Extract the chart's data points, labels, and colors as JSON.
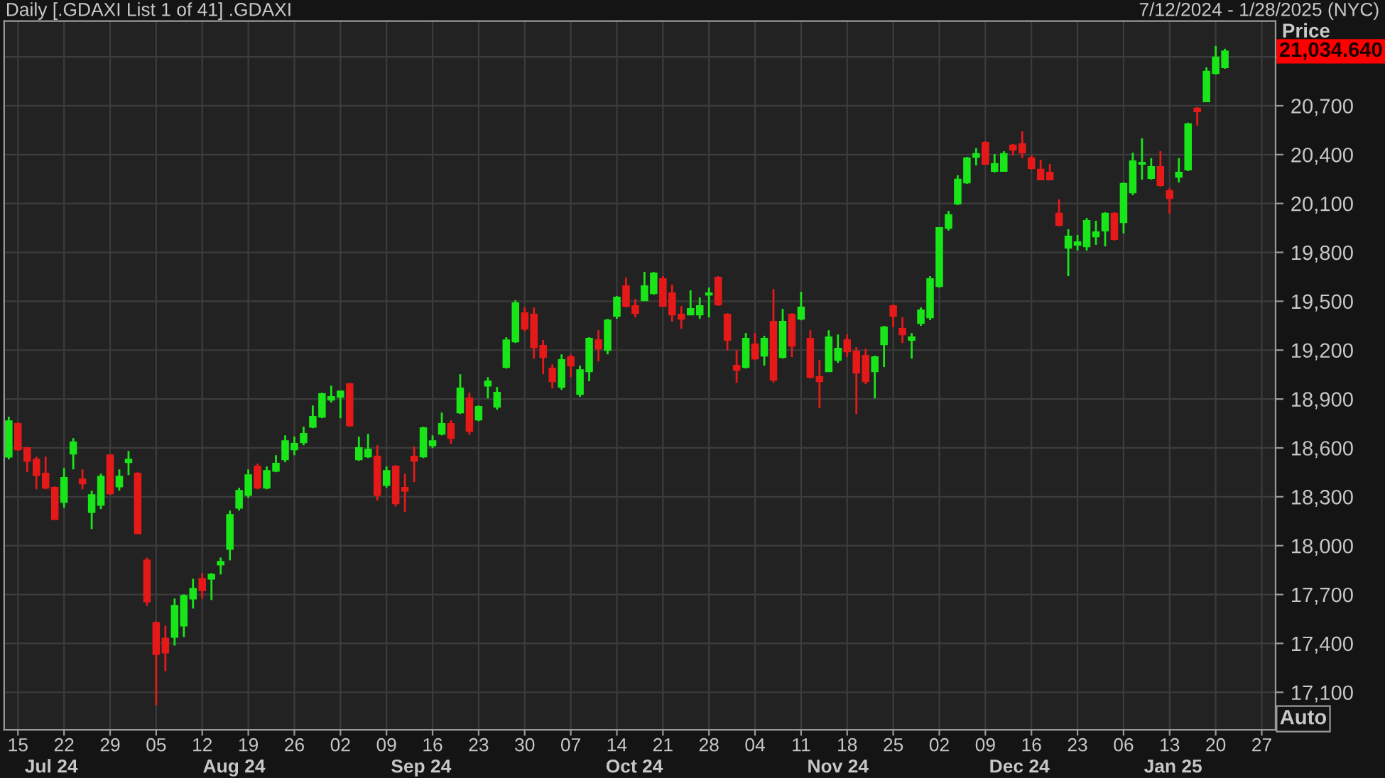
{
  "chart_data": {
    "type": "candlestick",
    "title": "Daily [.GDAXI List 1 of 41] .GDAXI",
    "subtitle": "7/12/2024 - 1/28/2025 (NYC)",
    "ylabel": "Price",
    "categories": [
      null,
      "15",
      null,
      null,
      null,
      null,
      "22",
      null,
      null,
      null,
      null,
      "29",
      null,
      null,
      null,
      null,
      "05",
      null,
      null,
      null,
      null,
      "12",
      null,
      null,
      null,
      null,
      "19",
      null,
      null,
      null,
      null,
      "26",
      null,
      null,
      null,
      null,
      "02",
      null,
      null,
      null,
      null,
      "09",
      null,
      null,
      null,
      null,
      "16",
      null,
      null,
      null,
      null,
      "23",
      null,
      null,
      null,
      null,
      "30",
      null,
      null,
      null,
      null,
      "07",
      null,
      null,
      null,
      null,
      "14",
      null,
      null,
      null,
      null,
      "21",
      null,
      null,
      null,
      null,
      "28",
      null,
      null,
      null,
      null,
      "04",
      null,
      null,
      null,
      null,
      "11",
      null,
      null,
      null,
      null,
      "18",
      null,
      null,
      null,
      null,
      "25",
      null,
      null,
      null,
      null,
      "02",
      null,
      null,
      null,
      null,
      "09",
      null,
      null,
      null,
      null,
      "16",
      null,
      null,
      null,
      null,
      "23",
      null,
      null,
      null,
      null,
      "06",
      null,
      null,
      null,
      null,
      "13",
      null,
      null,
      null,
      null,
      "20",
      null,
      null,
      null,
      null,
      "27",
      null
    ],
    "ohlc": [
      [
        18546,
        18791,
        18529,
        18764
      ],
      [
        18747,
        18756,
        18581,
        18590
      ],
      [
        18599,
        18599,
        18451,
        18520
      ],
      [
        18529,
        18547,
        18346,
        18433
      ],
      [
        18442,
        18547,
        18346,
        18355
      ],
      [
        18355,
        18363,
        18163,
        18163
      ],
      [
        18268,
        18477,
        18233,
        18416
      ],
      [
        18564,
        18660,
        18468,
        18634
      ],
      [
        18407,
        18468,
        18346,
        18381
      ],
      [
        18206,
        18337,
        18102,
        18311
      ],
      [
        18250,
        18442,
        18224,
        18424
      ],
      [
        18555,
        18555,
        18311,
        18320
      ],
      [
        18363,
        18468,
        18337,
        18424
      ],
      [
        18512,
        18581,
        18433,
        18529
      ],
      [
        18442,
        18451,
        18075,
        18075
      ],
      [
        17910,
        17927,
        17631,
        17657
      ],
      [
        17526,
        17535,
        17020,
        17334
      ],
      [
        17430,
        17509,
        17230,
        17343
      ],
      [
        17439,
        17675,
        17387,
        17631
      ],
      [
        17509,
        17701,
        17439,
        17692
      ],
      [
        17675,
        17797,
        17614,
        17736
      ],
      [
        17797,
        17832,
        17675,
        17727
      ],
      [
        17797,
        17832,
        17666,
        17823
      ],
      [
        17884,
        17927,
        17823,
        17901
      ],
      [
        17980,
        18215,
        17910,
        18189
      ],
      [
        18232,
        18355,
        18215,
        18337
      ],
      [
        18311,
        18468,
        18294,
        18433
      ],
      [
        18486,
        18503,
        18346,
        18355
      ],
      [
        18355,
        18486,
        18346,
        18459
      ],
      [
        18459,
        18555,
        18451,
        18503
      ],
      [
        18529,
        18677,
        18512,
        18642
      ],
      [
        18590,
        18669,
        18555,
        18625
      ],
      [
        18634,
        18730,
        18616,
        18686
      ],
      [
        18729,
        18860,
        18721,
        18791
      ],
      [
        18791,
        18939,
        18782,
        18930
      ],
      [
        18895,
        18982,
        18878,
        18913
      ],
      [
        18913,
        18947,
        18782,
        18947
      ],
      [
        18991,
        18999,
        18729,
        18738
      ],
      [
        18529,
        18669,
        18520,
        18599
      ],
      [
        18547,
        18686,
        18538,
        18590
      ],
      [
        18547,
        18616,
        18276,
        18311
      ],
      [
        18372,
        18486,
        18355,
        18459
      ],
      [
        18486,
        18494,
        18241,
        18259
      ],
      [
        18355,
        18442,
        18206,
        18337
      ],
      [
        18547,
        18608,
        18390,
        18520
      ],
      [
        18547,
        18730,
        18538,
        18721
      ],
      [
        18616,
        18677,
        18599,
        18642
      ],
      [
        18686,
        18817,
        18677,
        18747
      ],
      [
        18747,
        18770,
        18625,
        18660
      ],
      [
        18817,
        19052,
        18808,
        18965
      ],
      [
        18904,
        18939,
        18680,
        18704
      ],
      [
        18773,
        18860,
        18764,
        18852
      ],
      [
        18982,
        19034,
        18904,
        19008
      ],
      [
        18852,
        18974,
        18834,
        18939
      ],
      [
        19096,
        19279,
        19087,
        19261
      ],
      [
        19253,
        19506,
        19244,
        19488
      ],
      [
        19427,
        19462,
        19314,
        19331
      ],
      [
        19418,
        19462,
        19148,
        19218
      ],
      [
        19227,
        19262,
        19052,
        19157
      ],
      [
        19087,
        19113,
        18965,
        19009
      ],
      [
        18974,
        19174,
        18956,
        19140
      ],
      [
        19157,
        19174,
        19035,
        19105
      ],
      [
        18930,
        19105,
        18913,
        19078
      ],
      [
        19070,
        19279,
        19009,
        19270
      ],
      [
        19262,
        19322,
        19131,
        19209
      ],
      [
        19200,
        19392,
        19174,
        19383
      ],
      [
        19410,
        19532,
        19392,
        19523
      ],
      [
        19593,
        19645,
        19462,
        19471
      ],
      [
        19471,
        19514,
        19401,
        19427
      ],
      [
        19505,
        19680,
        19505,
        19593
      ],
      [
        19549,
        19680,
        19540,
        19671
      ],
      [
        19636,
        19654,
        19471,
        19471
      ],
      [
        19549,
        19602,
        19375,
        19418
      ],
      [
        19418,
        19471,
        19331,
        19392
      ],
      [
        19418,
        19567,
        19418,
        19453
      ],
      [
        19418,
        19523,
        19392,
        19471
      ],
      [
        19540,
        19584,
        19401,
        19549
      ],
      [
        19645,
        19654,
        19471,
        19480
      ],
      [
        19418,
        19427,
        19200,
        19262
      ],
      [
        19105,
        19200,
        18999,
        19078
      ],
      [
        19096,
        19305,
        19087,
        19270
      ],
      [
        19235,
        19305,
        19139,
        19148
      ],
      [
        19166,
        19288,
        19105,
        19270
      ],
      [
        19375,
        19575,
        19000,
        19017
      ],
      [
        19157,
        19453,
        19148,
        19375
      ],
      [
        19418,
        19427,
        19157,
        19227
      ],
      [
        19392,
        19558,
        19383,
        19462
      ],
      [
        19270,
        19322,
        19026,
        19035
      ],
      [
        19035,
        19140,
        18843,
        19009
      ],
      [
        19070,
        19322,
        19070,
        19279
      ],
      [
        19139,
        19296,
        19122,
        19209
      ],
      [
        19262,
        19296,
        19157,
        19192
      ],
      [
        19192,
        19218,
        18808,
        19061
      ],
      [
        19166,
        19209,
        18991,
        19009
      ],
      [
        19070,
        19166,
        18904,
        19157
      ],
      [
        19235,
        19349,
        19096,
        19340
      ],
      [
        19471,
        19479,
        19340,
        19410
      ],
      [
        19331,
        19401,
        19244,
        19296
      ],
      [
        19262,
        19305,
        19148,
        19279
      ],
      [
        19366,
        19462,
        19349,
        19445
      ],
      [
        19401,
        19654,
        19384,
        19636
      ],
      [
        19593,
        19950,
        19584,
        19950
      ],
      [
        19950,
        20055,
        19933,
        20029
      ],
      [
        20099,
        20273,
        20090,
        20247
      ],
      [
        20229,
        20386,
        20221,
        20378
      ],
      [
        20386,
        20439,
        20334,
        20404
      ],
      [
        20473,
        20482,
        20343,
        20343
      ],
      [
        20299,
        20404,
        20290,
        20343
      ],
      [
        20299,
        20421,
        20299,
        20404
      ],
      [
        20456,
        20465,
        20395,
        20430
      ],
      [
        20465,
        20543,
        20378,
        20413
      ],
      [
        20378,
        20395,
        20308,
        20317
      ],
      [
        20308,
        20369,
        20247,
        20247
      ],
      [
        20290,
        20343,
        20247,
        20247
      ],
      [
        20038,
        20125,
        19959,
        19968
      ],
      [
        19828,
        19942,
        19654,
        19898
      ],
      [
        19846,
        19907,
        19811,
        19863
      ],
      [
        19837,
        20011,
        19811,
        19994
      ],
      [
        19898,
        19994,
        19846,
        19924
      ],
      [
        19933,
        20046,
        19837,
        20038
      ],
      [
        20038,
        20046,
        19872,
        19881
      ],
      [
        19985,
        20229,
        19916,
        20221
      ],
      [
        20168,
        20412,
        20151,
        20360
      ],
      [
        20343,
        20500,
        20247,
        20351
      ],
      [
        20256,
        20378,
        20247,
        20325
      ],
      [
        20325,
        20421,
        20203,
        20212
      ],
      [
        20177,
        20195,
        20038,
        20133
      ],
      [
        20264,
        20378,
        20229,
        20290
      ],
      [
        20308,
        20596,
        20299,
        20587
      ],
      [
        20683,
        20692,
        20578,
        20665
      ],
      [
        20726,
        20936,
        20726,
        20909
      ],
      [
        20900,
        21067,
        20892,
        20997
      ],
      [
        20936,
        21049,
        20927,
        21034
      ],
      null,
      null,
      null,
      null,
      null
    ],
    "colors": [
      "#19e619",
      "#e61919",
      "#e61919",
      "#e61919",
      "#e61919",
      "#e61919",
      "#19e619",
      "#19e619",
      "#e61919",
      "#19e619",
      "#19e619",
      "#e61919",
      "#19e619",
      "#19e619",
      "#e61919",
      "#e61919",
      "#e61919",
      "#e61919",
      "#19e619",
      "#19e619",
      "#19e619",
      "#e61919",
      "#19e619",
      "#19e619",
      "#19e619",
      "#19e619",
      "#19e619",
      "#e61919",
      "#19e619",
      "#19e619",
      "#19e619",
      "#19e619",
      "#19e619",
      "#19e619",
      "#19e619",
      "#19e619",
      "#19e619",
      "#e61919",
      "#19e619",
      "#19e619",
      "#e61919",
      "#19e619",
      "#e61919",
      "#e61919",
      "#e61919",
      "#19e619",
      "#19e619",
      "#19e619",
      "#e61919",
      "#19e619",
      "#e61919",
      "#19e619",
      "#19e619",
      "#19e619",
      "#19e619",
      "#19e619",
      "#e61919",
      "#e61919",
      "#e61919",
      "#e61919",
      "#19e619",
      "#e61919",
      "#19e619",
      "#19e619",
      "#e61919",
      "#19e619",
      "#19e619",
      "#e61919",
      "#e61919",
      "#19e619",
      "#19e619",
      "#e61919",
      "#e61919",
      "#e61919",
      "#19e619",
      "#19e619",
      "#19e619",
      "#e61919",
      "#e61919",
      "#e61919",
      "#19e619",
      "#e61919",
      "#19e619",
      "#e61919",
      "#19e619",
      "#e61919",
      "#19e619",
      "#e61919",
      "#e61919",
      "#19e619",
      "#19e619",
      "#e61919",
      "#e61919",
      "#e61919",
      "#19e619",
      "#19e619",
      "#e61919",
      "#e61919",
      "#19e619",
      "#19e619",
      "#19e619",
      "#19e619",
      "#19e619",
      "#19e619",
      "#19e619",
      "#19e619",
      "#e61919",
      "#19e619",
      "#19e619",
      "#e61919",
      "#e61919",
      "#e61919",
      "#e61919",
      "#e61919",
      "#e61919",
      "#19e619",
      "#19e619",
      "#19e619",
      "#19e619",
      "#19e619",
      "#e61919",
      "#19e619",
      "#19e619",
      "#19e619",
      "#19e619",
      "#e61919",
      "#e61919",
      "#19e619",
      "#19e619",
      "#e61919",
      "#19e619",
      "#19e619",
      "#19e619",
      null,
      null,
      null,
      null,
      null
    ],
    "ylim": [
      16870,
      21220
    ],
    "yticks": [
      {
        "value": 17100,
        "label": "17,100"
      },
      {
        "value": 17400,
        "label": "17,400"
      },
      {
        "value": 17700,
        "label": "17,700"
      },
      {
        "value": 18000,
        "label": "18,000"
      },
      {
        "value": 18300,
        "label": "18,300"
      },
      {
        "value": 18600,
        "label": "18,600"
      },
      {
        "value": 18900,
        "label": "18,900"
      },
      {
        "value": 19200,
        "label": "19,200"
      },
      {
        "value": 19500,
        "label": "19,500"
      },
      {
        "value": 19800,
        "label": "19,800"
      },
      {
        "value": 20100,
        "label": "20,100"
      },
      {
        "value": 20400,
        "label": "20,400"
      },
      {
        "value": 20700,
        "label": "20,700"
      },
      {
        "value": 21000,
        "label": null
      }
    ],
    "grid": true,
    "annotations": [
      "Jul 24",
      "Aug 24",
      "Sep 24",
      "Oct 24",
      "Nov 24",
      "Dec 24",
      "Jan 25",
      "Auto",
      "21,034.640"
    ]
  }
}
